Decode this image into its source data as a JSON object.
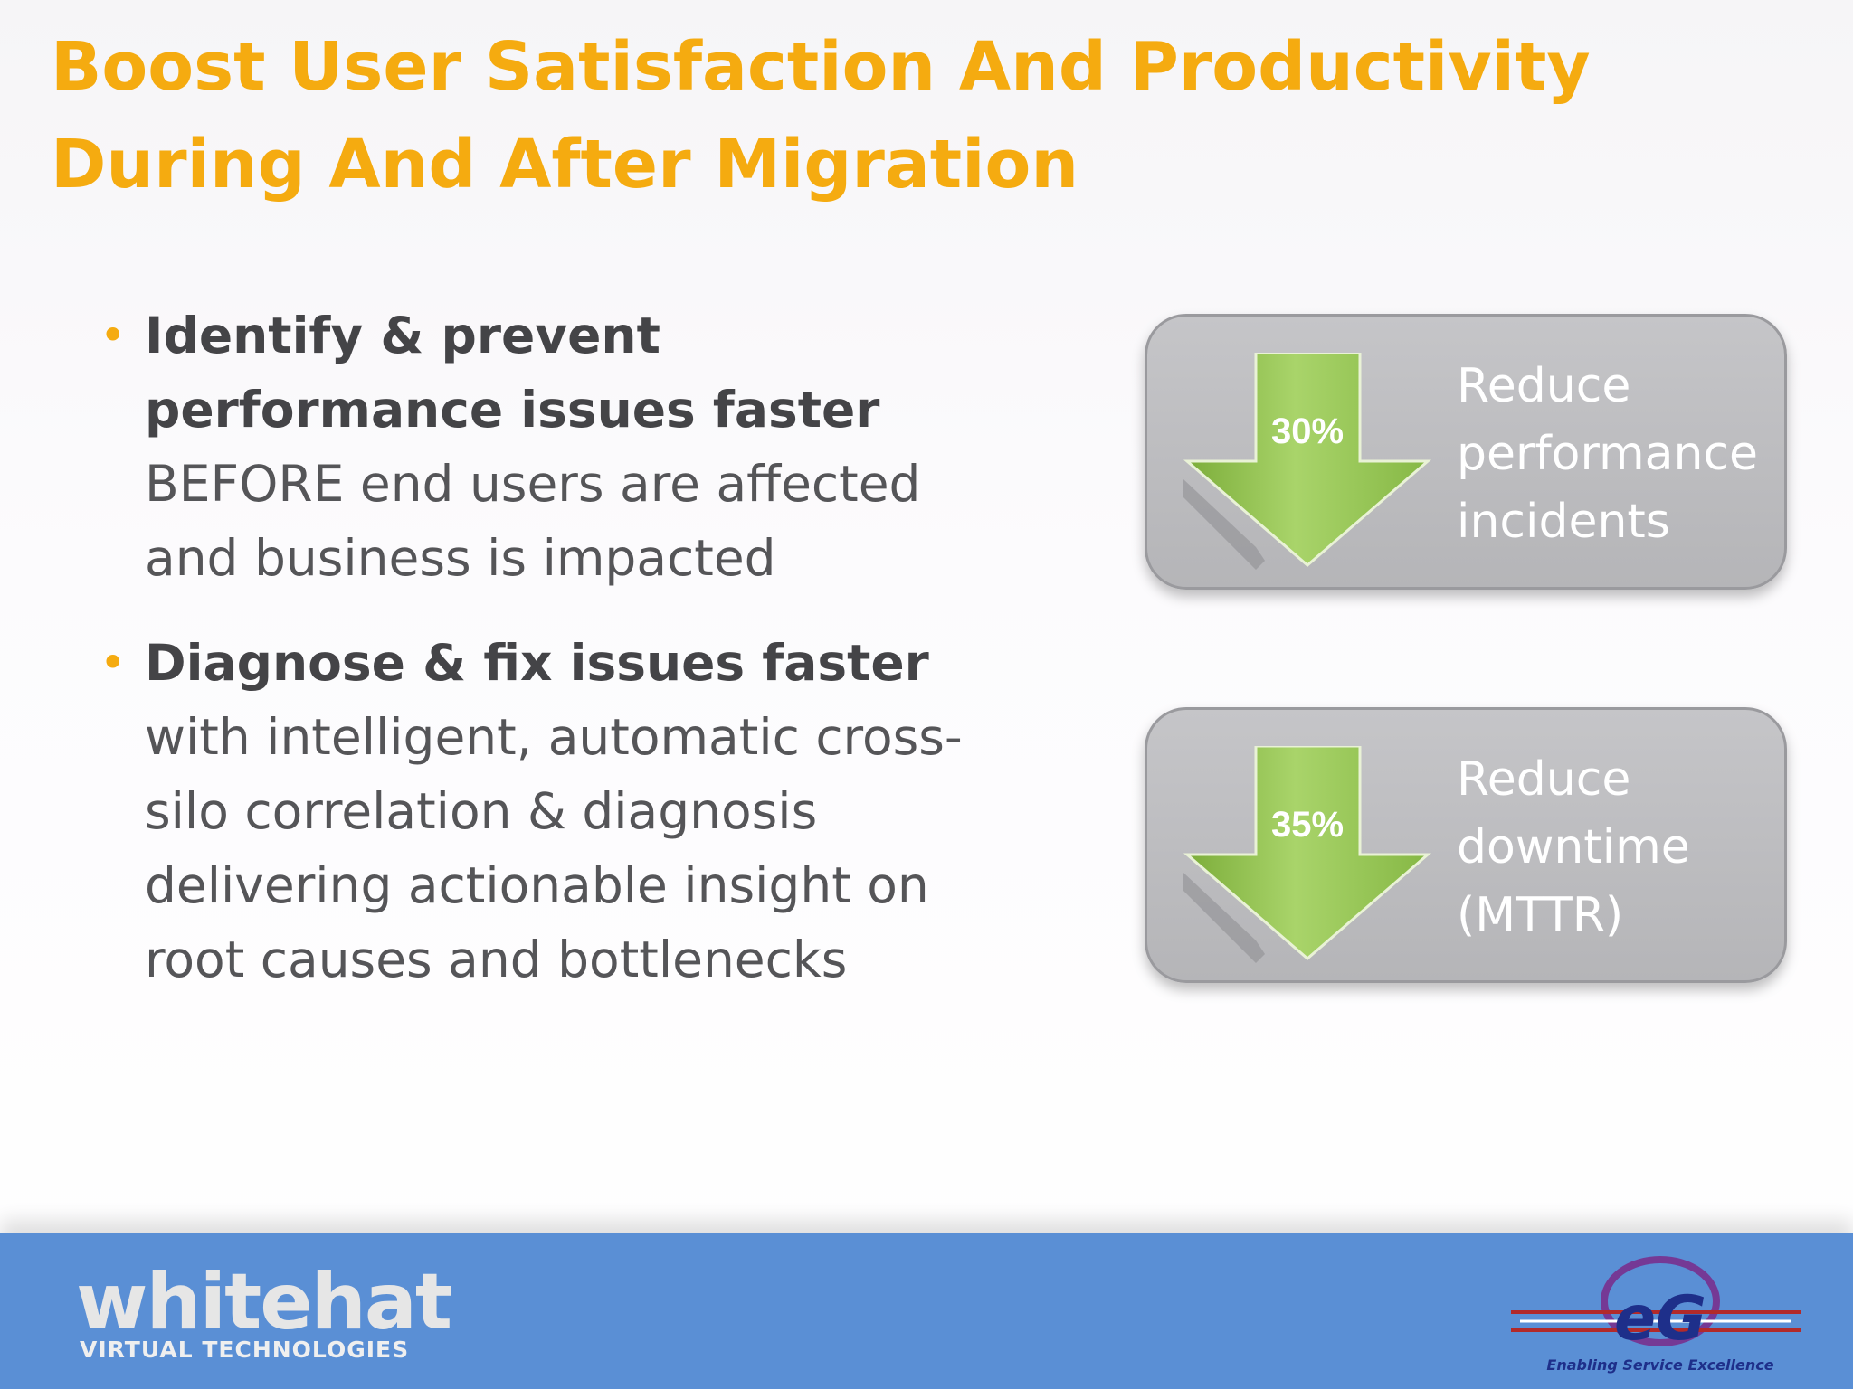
{
  "slide": {
    "title": "Boost User Satisfaction And Productivity During And After Migration",
    "bullets": [
      {
        "bold": "Identify & prevent performance issues faster",
        "text": " BEFORE end users are affected and business is impacted"
      },
      {
        "bold": "Diagnose & fix issues faster",
        "text": " with intelligent, automatic cross-silo correlation & diagnosis delivering actionable insight on root causes and bottlenecks"
      }
    ],
    "cards": [
      {
        "value": "30%",
        "lines": [
          "Reduce",
          "performance",
          "incidents"
        ]
      },
      {
        "value": "35%",
        "lines": [
          "Reduce",
          "downtime",
          "(MTTR)"
        ]
      }
    ]
  },
  "footer": {
    "left_logo": {
      "word": "whitehat",
      "subtitle": "VIRTUAL TECHNOLOGIES"
    },
    "right_logo": {
      "word": "eG",
      "tagline": "Enabling Service Excellence"
    }
  },
  "colors": {
    "title": "#f5ab10",
    "bullet": "#f5ab10",
    "arrow": "#8fc14a",
    "card": "#bdbdc0",
    "footer": "#5a8fd5"
  },
  "icons": [
    "down-arrow-icon",
    "bullet-dot-icon"
  ]
}
